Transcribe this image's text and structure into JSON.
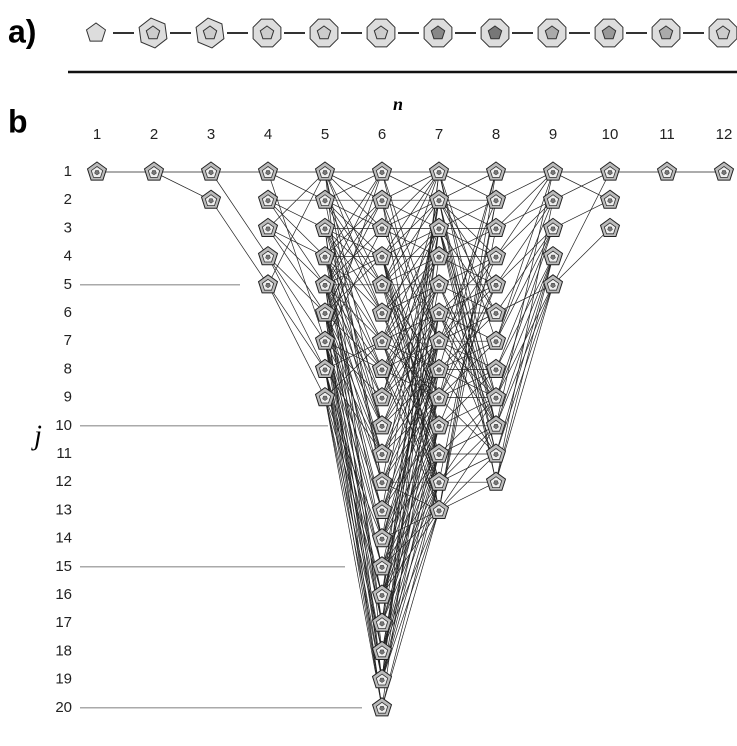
{
  "panel_a": {
    "label": "a)"
  },
  "panel_b": {
    "label": "b",
    "x_axis": {
      "label": "n",
      "ticks": [
        "1",
        "2",
        "3",
        "4",
        "5",
        "6",
        "7",
        "8",
        "9",
        "10",
        "11",
        "12"
      ]
    },
    "y_axis": {
      "label": "j",
      "ticks": [
        "1",
        "2",
        "3",
        "4",
        "5",
        "6",
        "7",
        "8",
        "9",
        "10",
        "11",
        "12",
        "13",
        "14",
        "15",
        "16",
        "17",
        "18",
        "19",
        "20"
      ]
    }
  }
}
